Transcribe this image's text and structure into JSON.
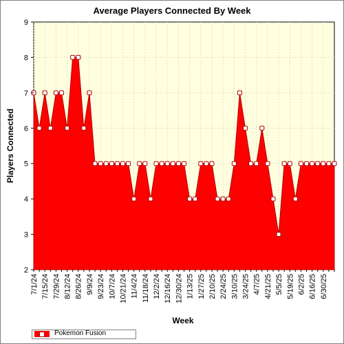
{
  "chart_data": {
    "type": "area",
    "title": "Average Players Connected By Week",
    "xlabel": "Week",
    "ylabel": "Players Connected",
    "ylim": [
      2,
      9
    ],
    "yticks": [
      "2",
      "3",
      "4",
      "5",
      "6",
      "7",
      "8",
      "9"
    ],
    "x_tick_labels": [
      "7/1/24",
      "7/15/24",
      "7/29/24",
      "8/12/24",
      "8/26/24",
      "9/9/24",
      "9/23/24",
      "10/7/24",
      "10/21/24",
      "11/4/24",
      "11/18/24",
      "12/2/24",
      "12/16/24",
      "12/30/24",
      "1/13/25",
      "1/27/25",
      "2/10/25",
      "2/24/25",
      "3/10/25",
      "3/24/25",
      "4/7/25",
      "4/21/25",
      "5/5/25",
      "5/19/25",
      "6/2/25",
      "6/16/25",
      "6/30/25"
    ],
    "background": "#ffffe0",
    "fill_color": "#ff0000",
    "grid": true,
    "legend_position": "bottom-left",
    "series": [
      {
        "name": "Pokemon Fusion",
        "values": [
          7,
          6,
          7,
          6,
          7,
          7,
          6,
          8,
          8,
          6,
          7,
          5,
          5,
          5,
          5,
          5,
          5,
          5,
          4,
          5,
          5,
          4,
          5,
          5,
          5,
          5,
          5,
          5,
          4,
          4,
          5,
          5,
          5,
          4,
          4,
          4,
          5,
          7,
          6,
          5,
          5,
          6,
          5,
          4,
          3,
          5,
          5,
          4,
          5,
          5,
          5,
          5,
          5,
          5,
          5
        ]
      }
    ]
  }
}
